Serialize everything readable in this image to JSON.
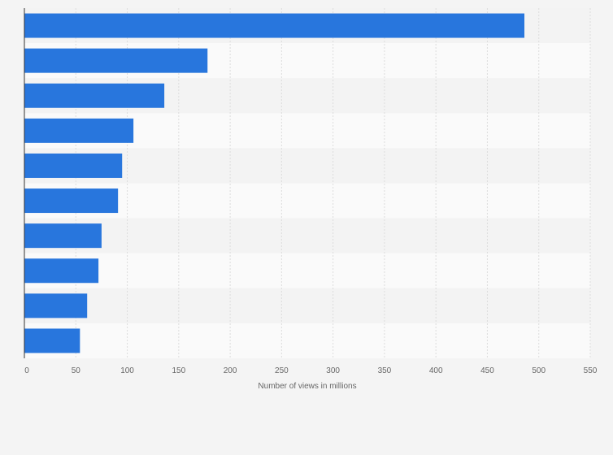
{
  "chart_data": {
    "type": "bar",
    "orientation": "horizontal",
    "title": "",
    "xlabel": "Number of views in millions",
    "ylabel": "",
    "categories": [
      "",
      "",
      "",
      "",
      "",
      "",
      "",
      "",
      "",
      ""
    ],
    "values": [
      486,
      178,
      136,
      106,
      95,
      91,
      75,
      72,
      61,
      54
    ],
    "xlim": [
      0,
      550
    ],
    "xticks": [
      0,
      50,
      100,
      150,
      200,
      250,
      300,
      350,
      400,
      450,
      500,
      550
    ],
    "grid": true,
    "legend": "none"
  },
  "colors": {
    "bar": "#2876dd",
    "plot_band_light": "#fafafa",
    "plot_band_dark": "#f3f3f3",
    "gridline": "#dcdcdc",
    "axis": "#333333"
  }
}
